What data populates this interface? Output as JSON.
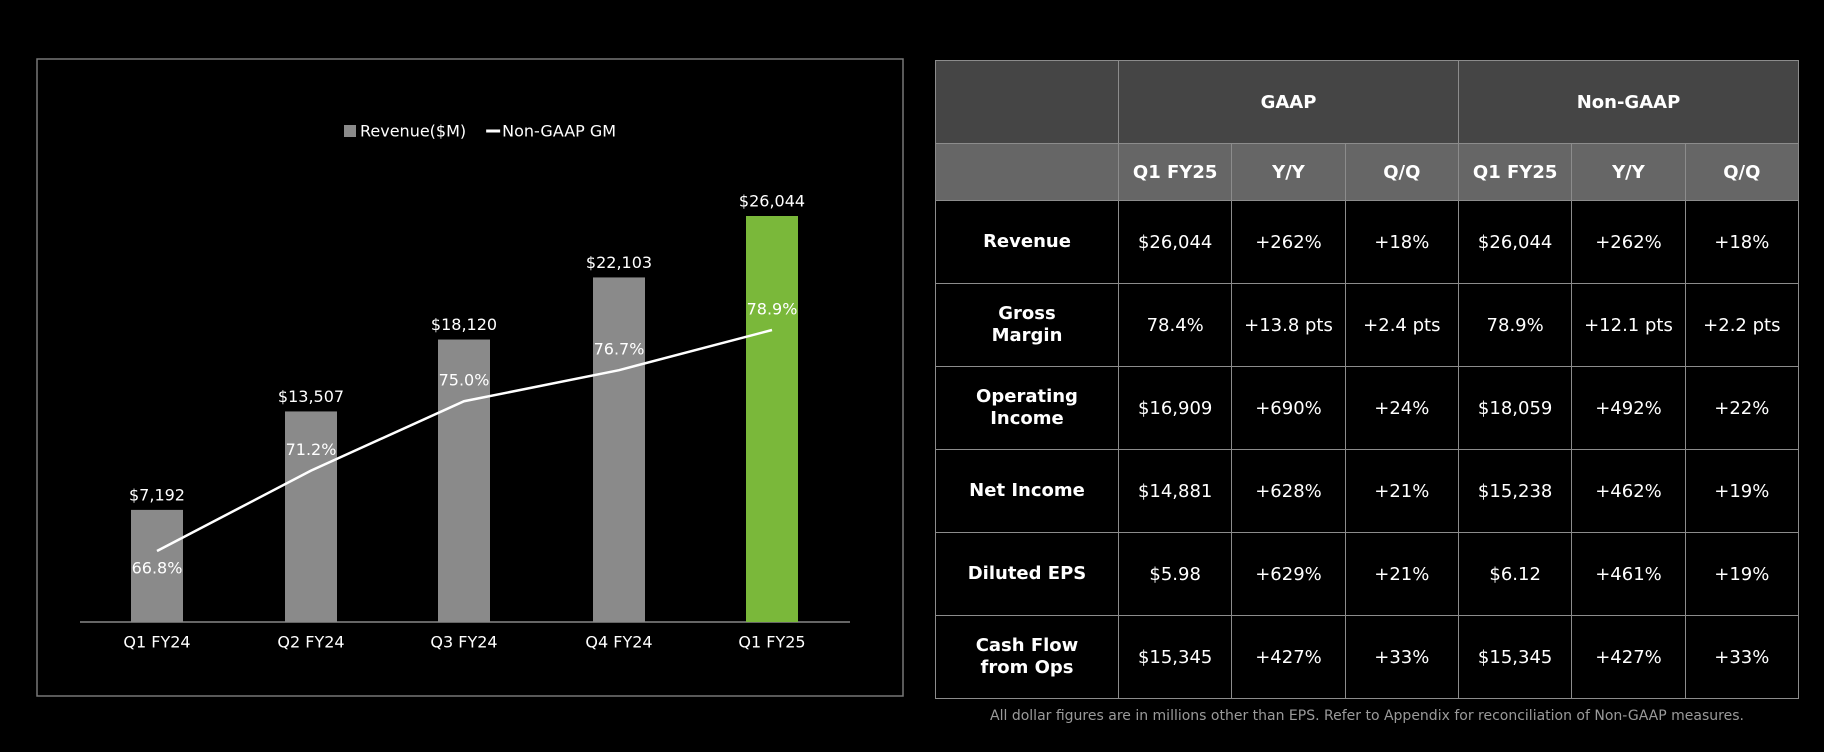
{
  "chart_data": {
    "type": "bar",
    "categories": [
      "Q1 FY24",
      "Q2 FY24",
      "Q3 FY24",
      "Q4 FY24",
      "Q1 FY25"
    ],
    "series": [
      {
        "name": "Revenue($M)",
        "type": "bar",
        "color": "#8a8a8a",
        "colors": [
          "#8a8a8a",
          "#8a8a8a",
          "#8a8a8a",
          "#8a8a8a",
          "#7ab83a"
        ],
        "values": [
          7192,
          13507,
          18120,
          22103,
          26044
        ],
        "value_labels": [
          "$7,192",
          "$13,507",
          "$18,120",
          "$22,103",
          "$26,044"
        ]
      },
      {
        "name": "Non-GAAP GM",
        "type": "line",
        "color": "#ffffff",
        "axis": "y2",
        "values": [
          66.8,
          71.2,
          75.0,
          76.7,
          78.9
        ],
        "value_labels": [
          "66.8%",
          "71.2%",
          "75.0%",
          "76.7%",
          "78.9%"
        ]
      }
    ]
  },
  "table": {
    "group_headers": [
      "GAAP",
      "Non-GAAP"
    ],
    "column_headers": [
      "Q1 FY25",
      "Y/Y",
      "Q/Q",
      "Q1 FY25",
      "Y/Y",
      "Q/Q"
    ],
    "rows": [
      {
        "label": "Revenue",
        "cells": [
          "$26,044",
          "+262%",
          "+18%",
          "$26,044",
          "+262%",
          "+18%"
        ]
      },
      {
        "label": "Gross Margin",
        "cells": [
          "78.4%",
          "+13.8 pts",
          "+2.4 pts",
          "78.9%",
          "+12.1 pts",
          "+2.2 pts"
        ]
      },
      {
        "label": "Operating Income",
        "cells": [
          "$16,909",
          "+690%",
          "+24%",
          "$18,059",
          "+492%",
          "+22%"
        ]
      },
      {
        "label": "Net Income",
        "cells": [
          "$14,881",
          "+628%",
          "+21%",
          "$15,238",
          "+462%",
          "+19%"
        ]
      },
      {
        "label": "Diluted EPS",
        "cells": [
          "$5.98",
          "+629%",
          "+21%",
          "$6.12",
          "+461%",
          "+19%"
        ]
      },
      {
        "label": "Cash Flow from Ops",
        "cells": [
          "$15,345",
          "+427%",
          "+33%",
          "$15,345",
          "+427%",
          "+33%"
        ]
      }
    ]
  },
  "footnote": "All dollar figures are in millions other than EPS. Refer to Appendix for reconciliation of Non-GAAP measures."
}
